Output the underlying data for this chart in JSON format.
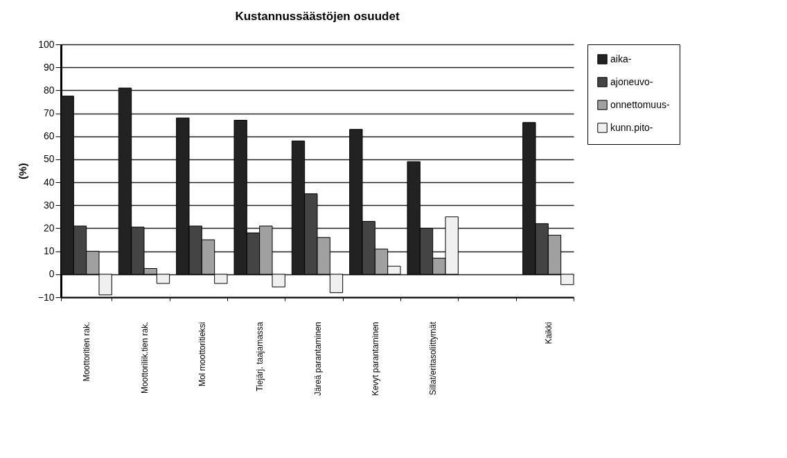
{
  "chart_data": {
    "type": "bar",
    "title": "Kustannussäästöjen osuudet",
    "ylabel": "(%)",
    "categories": [
      "Moottoritien rak.",
      "Moottoriliik.tien rak.",
      "Mol moottoritieksi",
      "Tiejärj. taajamassa",
      "Järeä parantaminen",
      "Kevyt parantaminen",
      "Sillat/eritasoliittymät",
      null,
      "Kaikki"
    ],
    "series": [
      {
        "name": "aika-",
        "color": "#222222",
        "values": [
          77.5,
          81,
          68,
          67,
          58,
          63,
          49,
          null,
          66
        ]
      },
      {
        "name": "ajoneuvo-",
        "color": "#444444",
        "values": [
          21,
          20.5,
          21,
          18,
          35,
          23,
          20,
          null,
          22
        ]
      },
      {
        "name": "onnettomuus-",
        "color": "#a0a0a0",
        "values": [
          10,
          2.5,
          15,
          21,
          16,
          11,
          7,
          null,
          17
        ]
      },
      {
        "name": "kunn.pito-",
        "color": "#f0f0f0",
        "values": [
          -9,
          -4,
          -4,
          -5.5,
          -8,
          3.5,
          25,
          null,
          -4.5
        ]
      }
    ],
    "ylim": [
      -10,
      100
    ],
    "yticks": [
      -10,
      0,
      10,
      20,
      30,
      40,
      50,
      60,
      70,
      80,
      90,
      100
    ],
    "grid": "y",
    "legend": "right"
  }
}
